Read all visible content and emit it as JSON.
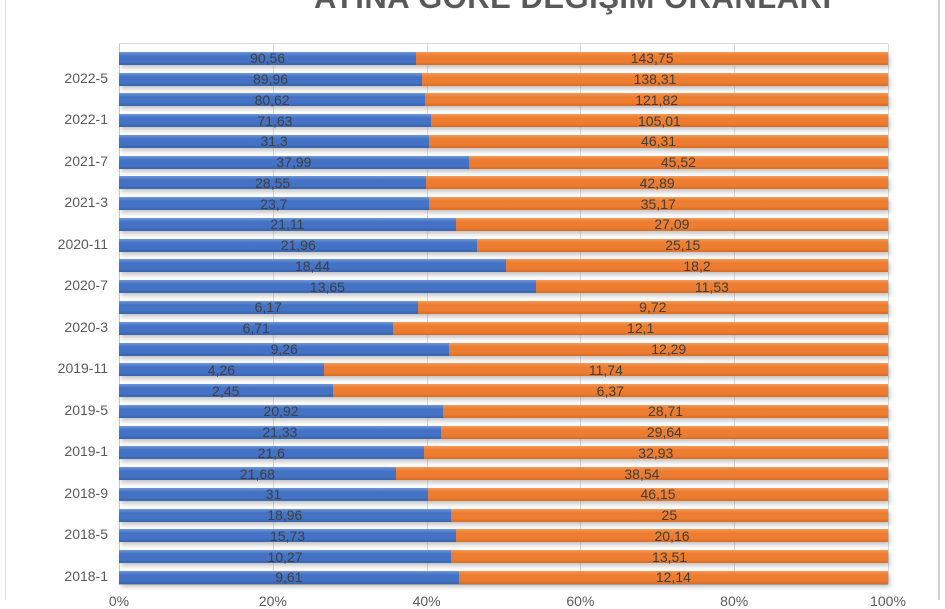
{
  "chart_data": {
    "type": "bar",
    "variant": "horizontal-100pct-stacked",
    "title": "AYINA GÖRE DEĞİŞİM ORANLARI",
    "legend": "none",
    "grid": "vertical",
    "axis_range_pct": [
      0,
      100
    ],
    "x_ticks": [
      "0%",
      "20%",
      "40%",
      "60%",
      "80%",
      "100%"
    ],
    "series_colors": [
      "#4472C4",
      "#ED7D31"
    ],
    "rows": [
      {
        "category": "",
        "s1": "90,56",
        "s2": "143,75"
      },
      {
        "category": "2022-5",
        "s1": "89,96",
        "s2": "138,31"
      },
      {
        "category": "",
        "s1": "80,62",
        "s2": "121,82"
      },
      {
        "category": "2022-1",
        "s1": "71,63",
        "s2": "105,01"
      },
      {
        "category": "",
        "s1": "31,3",
        "s2": "46,31"
      },
      {
        "category": "2021-7",
        "s1": "37,99",
        "s2": "45,52"
      },
      {
        "category": "",
        "s1": "28,55",
        "s2": "42,89"
      },
      {
        "category": "2021-3",
        "s1": "23,7",
        "s2": "35,17"
      },
      {
        "category": "",
        "s1": "21,11",
        "s2": "27,09"
      },
      {
        "category": "2020-11",
        "s1": "21,96",
        "s2": "25,15"
      },
      {
        "category": "",
        "s1": "18,44",
        "s2": "18,2"
      },
      {
        "category": "2020-7",
        "s1": "13,65",
        "s2": "11,53"
      },
      {
        "category": "",
        "s1": "6,17",
        "s2": "9,72"
      },
      {
        "category": "2020-3",
        "s1": "6,71",
        "s2": "12,1"
      },
      {
        "category": "",
        "s1": "9,26",
        "s2": "12,29"
      },
      {
        "category": "2019-11",
        "s1": "4,26",
        "s2": "11,74"
      },
      {
        "category": "",
        "s1": "2,45",
        "s2": "6,37"
      },
      {
        "category": "2019-5",
        "s1": "20,92",
        "s2": "28,71"
      },
      {
        "category": "",
        "s1": "21,33",
        "s2": "29,64"
      },
      {
        "category": "2019-1",
        "s1": "21,6",
        "s2": "32,93"
      },
      {
        "category": "",
        "s1": "21,68",
        "s2": "38,54"
      },
      {
        "category": "2018-9",
        "s1": "31",
        "s2": "46,15"
      },
      {
        "category": "",
        "s1": "18,96",
        "s2": "25"
      },
      {
        "category": "2018-5",
        "s1": "15,73",
        "s2": "20,16"
      },
      {
        "category": "",
        "s1": "10,27",
        "s2": "13,51"
      },
      {
        "category": "2018-1",
        "s1": "9,61",
        "s2": "12,14"
      }
    ],
    "colors": {
      "title": "#595959",
      "axis_text": "#595959",
      "value_text": "#3F3F3F",
      "gridline": "#D9D9D9"
    }
  }
}
